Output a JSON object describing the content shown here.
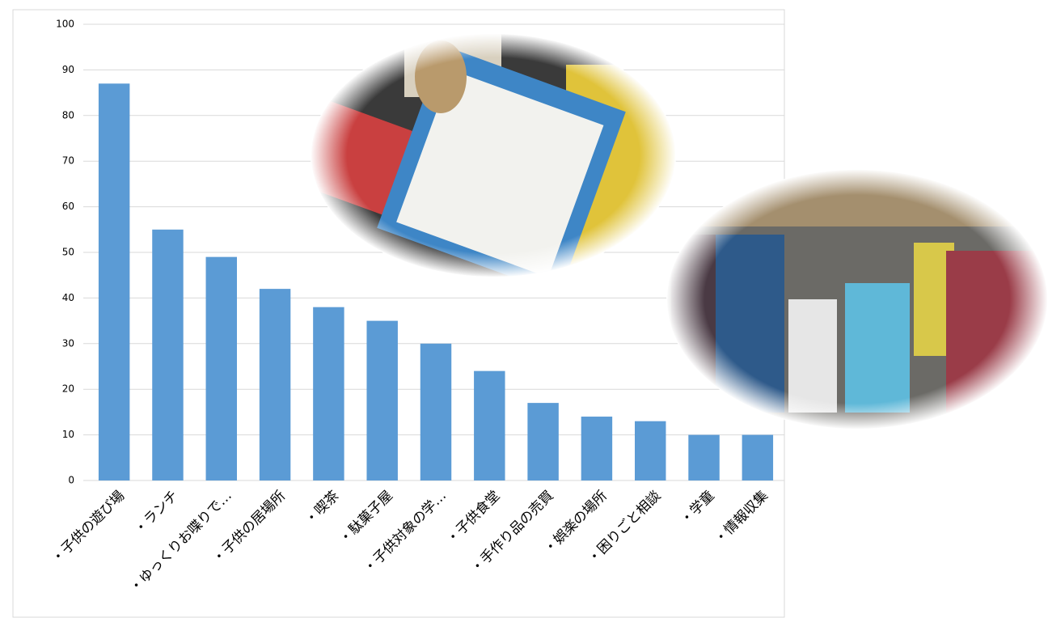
{
  "chart_data": {
    "type": "bar",
    "categories": [
      "・子供の遊び場",
      "・ランチ",
      "・ゆっくりお喋りで…",
      "・子供の居場所",
      "・喫茶",
      "・駄菓子屋",
      "・子供対象の学…",
      "・子供食堂",
      "・手作り品の売買",
      "・娯楽の場所",
      "・困りごと相談",
      "・学童",
      "・情報収集"
    ],
    "values": [
      87,
      55,
      49,
      42,
      38,
      35,
      30,
      24,
      17,
      14,
      13,
      10,
      10
    ],
    "color": "#5b9bd5",
    "ylim": [
      0,
      100
    ],
    "yticks": [
      0,
      10,
      20,
      30,
      40,
      50,
      60,
      70,
      80,
      90,
      100
    ],
    "grid": true
  }
}
